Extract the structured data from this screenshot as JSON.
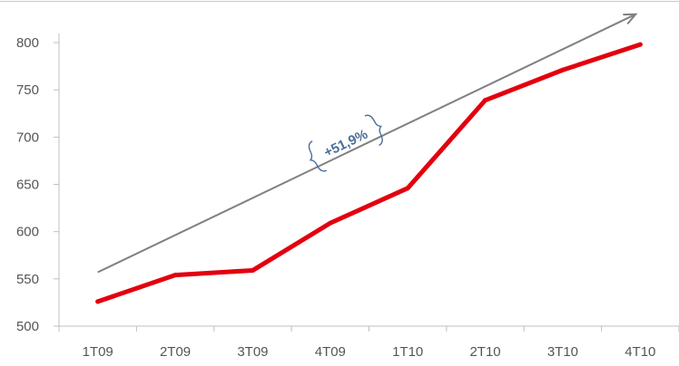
{
  "chart_data": {
    "type": "line",
    "categories": [
      "1T09",
      "2T09",
      "3T09",
      "4T09",
      "1T10",
      "2T10",
      "3T10",
      "4T10"
    ],
    "values": [
      526,
      554,
      559,
      609,
      646,
      739,
      771,
      798
    ],
    "ylim": [
      500,
      800
    ],
    "yticks": [
      500,
      550,
      600,
      650,
      700,
      750,
      800
    ],
    "grid": false,
    "title": "",
    "xlabel": "",
    "ylabel": "",
    "series_color": "#e3000f",
    "trend": {
      "label": "+51,9%",
      "start_value": 557,
      "end_value": 830,
      "color": "#808080",
      "annotation_color": "#4a6f9a"
    }
  }
}
